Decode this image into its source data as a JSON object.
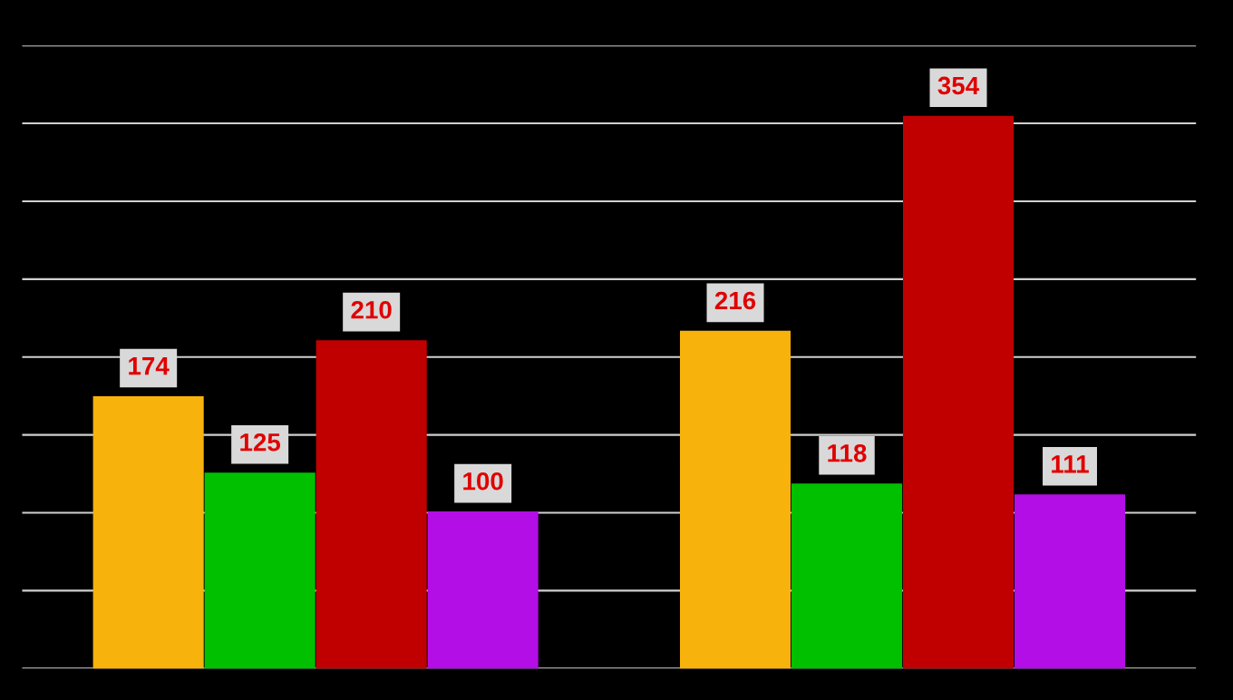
{
  "chart_data": {
    "type": "bar",
    "categories": [
      null,
      null
    ],
    "series": [
      {
        "color": "#f7b20c",
        "values": [
          174,
          216
        ]
      },
      {
        "color": "#00c000",
        "values": [
          125,
          118
        ]
      },
      {
        "color": "#c00000",
        "values": [
          210,
          354
        ]
      },
      {
        "color": "#b40ee6",
        "values": [
          100,
          111
        ]
      }
    ],
    "ylim": [
      0,
      400
    ],
    "yticks": [
      {
        "value": 0,
        "label": null
      },
      {
        "value": 50,
        "label": null
      },
      {
        "value": 100,
        "label": null
      },
      {
        "value": 150,
        "label": null
      },
      {
        "value": 200,
        "label": null
      },
      {
        "value": 250,
        "label": null
      },
      {
        "value": 300,
        "label": null
      },
      {
        "value": 350,
        "label": null
      },
      {
        "value": 400,
        "label": null
      }
    ],
    "grid": "y",
    "data_labels": true
  }
}
